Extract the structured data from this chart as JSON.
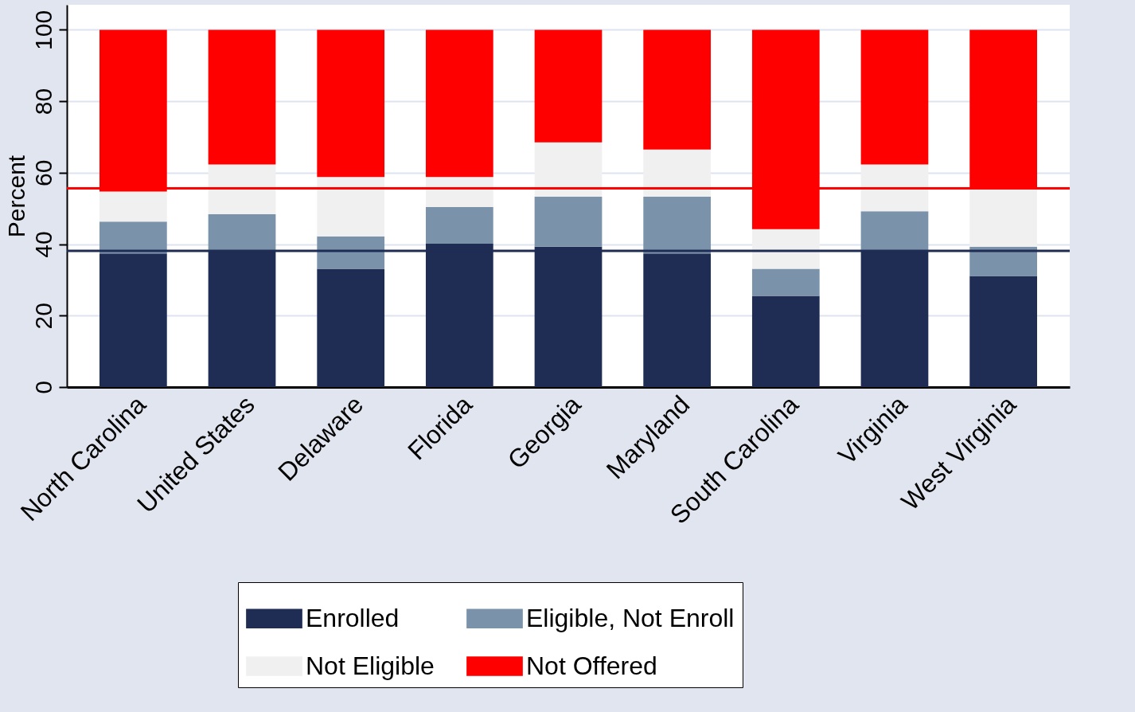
{
  "chart_data": {
    "type": "bar",
    "stacked": true,
    "ylabel": "Percent",
    "categories": [
      "North Carolina",
      "United States",
      "Delaware",
      "Florida",
      "Georgia",
      "Maryland",
      "South Carolina",
      "Virginia",
      "West Virginia"
    ],
    "series": [
      {
        "name": "Enrolled",
        "color": "#1f2d54",
        "values": [
          37.4,
          37.9,
          33.1,
          40.1,
          39.3,
          37.4,
          25.5,
          37.9,
          31.1
        ]
      },
      {
        "name": "Eligible, Not Enroll",
        "color": "#7a93aa",
        "values": [
          8.9,
          10.5,
          9.1,
          10.3,
          14.0,
          15.9,
          7.6,
          11.3,
          8.2
        ]
      },
      {
        "name": "Not Eligible",
        "color": "#f0f0f0",
        "values": [
          8.4,
          13.9,
          16.6,
          8.4,
          15.2,
          13.2,
          11.1,
          13.1,
          16.0
        ]
      },
      {
        "name": "Not Offered",
        "color": "#ff0000",
        "values": [
          45.3,
          37.7,
          41.2,
          41.2,
          31.5,
          33.5,
          55.8,
          37.7,
          44.7
        ]
      }
    ],
    "ylim": [
      0,
      107
    ],
    "yticks": [
      0,
      20,
      40,
      60,
      80,
      100
    ],
    "grid": "y",
    "legend": "bottom",
    "ref_lines": [
      {
        "axis": "y",
        "value": 55.6,
        "color": "#ff0000"
      },
      {
        "axis": "y",
        "value": 38.1,
        "color": "#1f2d54"
      }
    ]
  }
}
